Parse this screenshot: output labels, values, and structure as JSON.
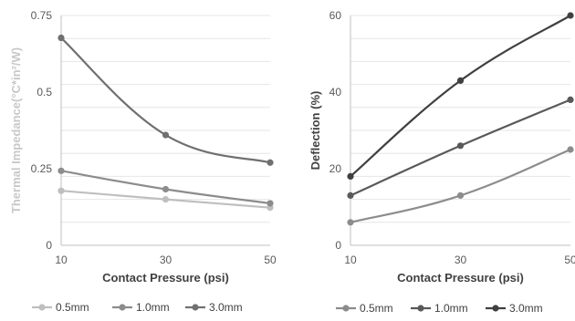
{
  "chart_data": [
    {
      "type": "line",
      "x": [
        10,
        30,
        50
      ],
      "xlabel": "Contact Pressure (psi)",
      "ylabel": "Thermal Impedance(°C*in²/W)",
      "ylabel_color": "#c8c8c8",
      "ylim": [
        0,
        0.75
      ],
      "yticks": [
        "0",
        "0.25",
        "0.5",
        "0.75"
      ],
      "xticks": [
        "10",
        "30",
        "50"
      ],
      "grid": true,
      "legend_position": "bottom",
      "series": [
        {
          "name": "0.5mm",
          "color": "#bfbfbf",
          "values": [
            0.178,
            0.15,
            0.123
          ]
        },
        {
          "name": "1.0mm",
          "color": "#8c8c8c",
          "values": [
            0.243,
            0.183,
            0.137
          ]
        },
        {
          "name": "3.0mm",
          "color": "#707070",
          "values": [
            0.677,
            0.36,
            0.27
          ]
        }
      ]
    },
    {
      "type": "line",
      "x": [
        10,
        30,
        50
      ],
      "xlabel": "Contact Pressure (psi)",
      "ylabel": "Deflection (%)",
      "ylabel_color": "#404040",
      "ylim": [
        0,
        60
      ],
      "yticks": [
        "0",
        "20",
        "40",
        "60"
      ],
      "xticks": [
        "10",
        "30",
        "50"
      ],
      "grid": true,
      "legend_position": "bottom",
      "series": [
        {
          "name": "0.5mm",
          "color": "#8c8c8c",
          "values": [
            6,
            13,
            25
          ]
        },
        {
          "name": "1.0mm",
          "color": "#595959",
          "values": [
            13,
            26,
            38
          ]
        },
        {
          "name": "3.0mm",
          "color": "#404040",
          "values": [
            18,
            43,
            60
          ]
        }
      ]
    }
  ]
}
